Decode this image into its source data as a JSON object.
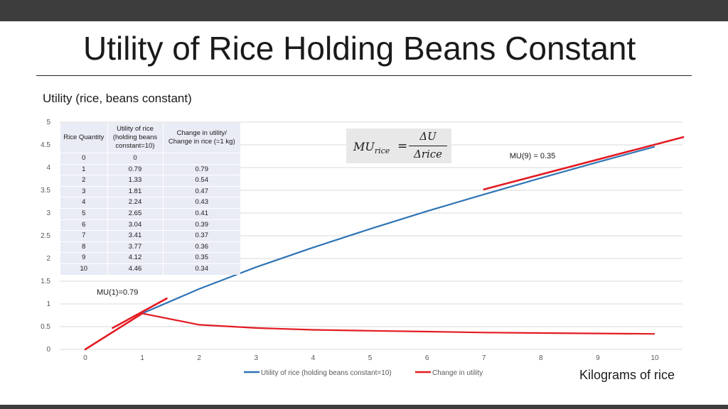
{
  "slide": {
    "title": "Utility of Rice Holding Beans Constant"
  },
  "table": {
    "headers": [
      "Rice Quantity",
      "Utility of rice (holding beans constant=10)",
      "Change in utility/ Change in rice (=1 kg)"
    ],
    "rows": [
      [
        "0",
        "0",
        ""
      ],
      [
        "1",
        "0.79",
        "0.79"
      ],
      [
        "2",
        "1.33",
        "0.54"
      ],
      [
        "3",
        "1.81",
        "0.47"
      ],
      [
        "4",
        "2.24",
        "0.43"
      ],
      [
        "5",
        "2.65",
        "0.41"
      ],
      [
        "6",
        "3.04",
        "0.39"
      ],
      [
        "7",
        "3.41",
        "0.37"
      ],
      [
        "8",
        "3.77",
        "0.36"
      ],
      [
        "9",
        "4.12",
        "0.35"
      ],
      [
        "10",
        "4.46",
        "0.34"
      ]
    ]
  },
  "formula": {
    "lhs_main": "MU",
    "lhs_sub": "rice",
    "equals": "=",
    "numerator": "ΔU",
    "denominator": "Δrice"
  },
  "chart_data": {
    "type": "line",
    "title": "Utility (rice, beans constant)",
    "xlabel": "Kilograms of rice",
    "ylabel": "",
    "x": [
      0,
      1,
      2,
      3,
      4,
      5,
      6,
      7,
      8,
      9,
      10
    ],
    "xlim": [
      0,
      10
    ],
    "ylim": [
      0,
      5
    ],
    "xticks": [
      "0",
      "1",
      "2",
      "3",
      "4",
      "5",
      "6",
      "7",
      "8",
      "9",
      "10"
    ],
    "yticks": [
      "0",
      "0.5",
      "1",
      "1.5",
      "2",
      "2.5",
      "3",
      "3.5",
      "4",
      "4.5",
      "5"
    ],
    "grid": true,
    "legend_position": "bottom",
    "series": [
      {
        "name": "Utility of rice (holding beans constant=10)",
        "color": "#2e75b6",
        "x": [
          1,
          2,
          3,
          4,
          5,
          6,
          7,
          8,
          9,
          10
        ],
        "values": [
          0.79,
          1.33,
          1.81,
          2.24,
          2.65,
          3.04,
          3.41,
          3.77,
          4.12,
          4.46
        ]
      },
      {
        "name": "Change in utility",
        "color": "#e31b23",
        "x": [
          1,
          2,
          3,
          4,
          5,
          6,
          7,
          8,
          9,
          10
        ],
        "values": [
          0.79,
          0.54,
          0.47,
          0.43,
          0.41,
          0.39,
          0.37,
          0.36,
          0.35,
          0.34
        ]
      }
    ],
    "tangent_lines": [
      {
        "name": "origin-segment",
        "color": "#e31b23",
        "x": [
          0,
          1
        ],
        "y": [
          0,
          0.79
        ]
      },
      {
        "name": "tangent-at-1",
        "color": "#e31b23",
        "x": [
          0.48,
          1.43
        ],
        "y": [
          0.47,
          1.12
        ]
      },
      {
        "name": "tangent-at-9",
        "color": "#e31b23",
        "x": [
          7.0,
          10.5
        ],
        "y": [
          3.52,
          4.67
        ]
      }
    ],
    "annotations": [
      {
        "text": "MU(1)=0.79",
        "x": 0.2,
        "y": 1.2
      },
      {
        "text": "MU(9) = 0.35",
        "x": 7.45,
        "y": 4.2
      }
    ]
  }
}
